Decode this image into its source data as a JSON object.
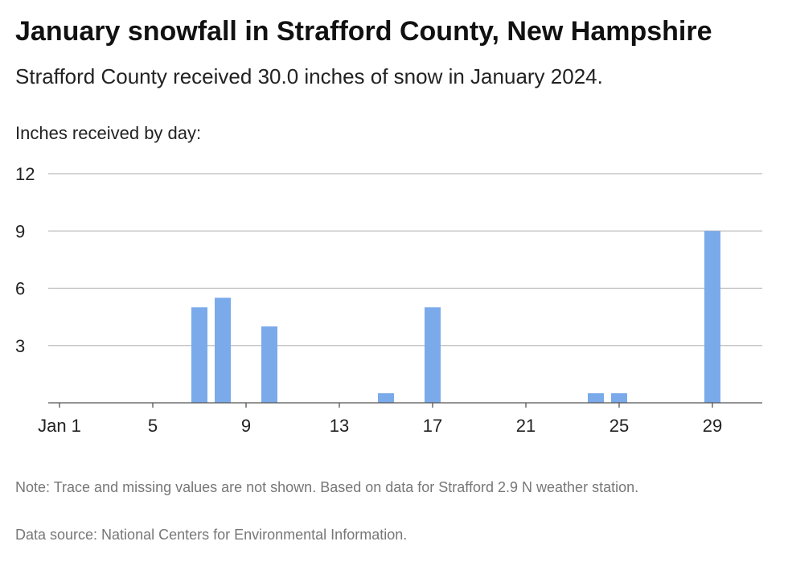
{
  "header": {
    "title": "January snowfall in Strafford County, New Hampshire",
    "subtitle": "Strafford County received 30.0 inches of snow in January 2024."
  },
  "footer": {
    "note": "Note: Trace and missing values are not shown. Based on data for Strafford 2.9 N weather station.",
    "source": "Data source: National Centers for Environmental Information."
  },
  "chart_data": {
    "type": "bar",
    "title": "January snowfall in Strafford County, New Hampshire",
    "subtitle": "Strafford County received 30.0 inches of snow in January 2024.",
    "ylabel": "Inches received by day:",
    "xlabel": "",
    "x_range": [
      1,
      31
    ],
    "ylim": [
      0,
      12
    ],
    "yticks": [
      3,
      6,
      9,
      12
    ],
    "xticks": [
      {
        "day": 1,
        "label": "Jan 1"
      },
      {
        "day": 5,
        "label": "5"
      },
      {
        "day": 9,
        "label": "9"
      },
      {
        "day": 13,
        "label": "13"
      },
      {
        "day": 17,
        "label": "17"
      },
      {
        "day": 21,
        "label": "21"
      },
      {
        "day": 25,
        "label": "25"
      },
      {
        "day": 29,
        "label": "29"
      }
    ],
    "grid": true,
    "color": "#7aaaea",
    "days": [
      7,
      8,
      10,
      15,
      17,
      24,
      25,
      29
    ],
    "values": [
      5.0,
      5.5,
      4.0,
      0.5,
      5.0,
      0.5,
      0.5,
      9.0
    ]
  }
}
